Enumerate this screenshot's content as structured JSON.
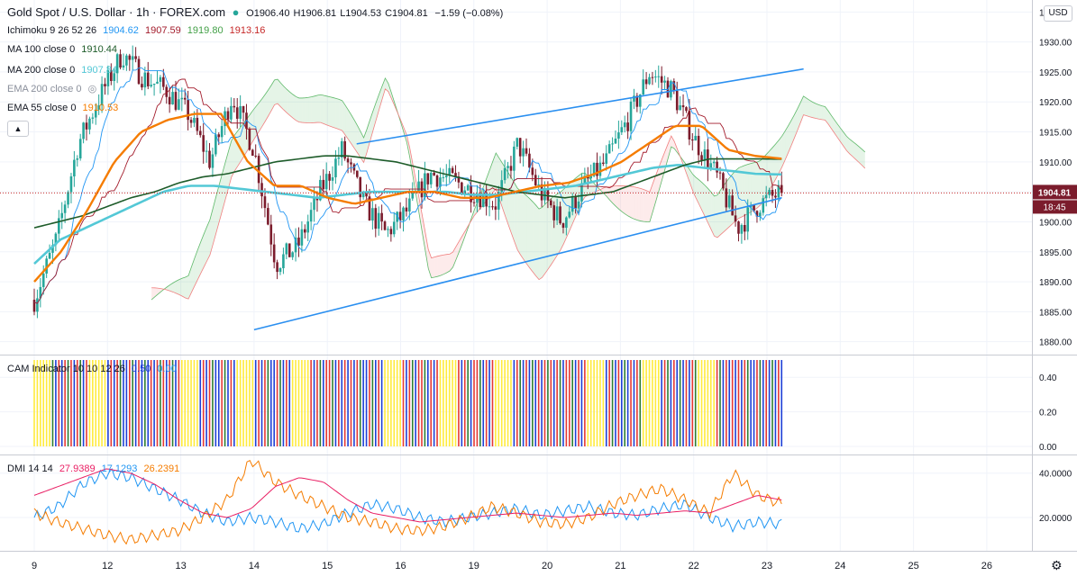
{
  "header": {
    "symbol": "Gold Spot / U.S. Dollar · 1h · FOREX.com",
    "open": "O1906.40",
    "high": "H1906.81",
    "low": "L1904.53",
    "close": "C1904.81",
    "change": "−1.59 (−0.08%)",
    "currency_button": "USD"
  },
  "legends": {
    "ichimoku": {
      "label": "Ichimoku 9 26 52 26",
      "v1": "1904.62",
      "v2": "1907.59",
      "v3": "1919.80",
      "v4": "1913.16"
    },
    "ma100": {
      "label": "MA 100 close 0",
      "value": "1910.44"
    },
    "ma200": {
      "label": "MA 200 close 0",
      "value": "1907.84"
    },
    "ema200": {
      "label": "EMA 200 close 0"
    },
    "ema55": {
      "label": "EMA 55 close 0",
      "value": "1910.53"
    },
    "cam": {
      "label": "CAM Indicator 10 10 12 26",
      "v1": "0.50",
      "v2": "0.00"
    },
    "dmi": {
      "label": "DMI 14 14",
      "v1": "27.9389",
      "v2": "17.1293",
      "v3": "26.2391"
    }
  },
  "price_label": "1904.81",
  "countdown": "18:45",
  "colors": {
    "up": "#26a69a",
    "down": "#7b1c2c",
    "ma100": "#1e5c2a",
    "ema200": "#53c8d6",
    "ema55": "#f57c00",
    "trend": "#2a8ff0",
    "kijun": "#a31c2c",
    "tenkan": "#2196f3",
    "cloud_green": "#5fb96a",
    "cloud_red": "#f08080",
    "dmi_plus": "#2196f3",
    "dmi_minus": "#f57c00",
    "adx": "#e91e63",
    "cam_colors": [
      "#ffeb3b",
      "#1e3fd6",
      "#e53935",
      "#2e7d32"
    ]
  },
  "chart_data": [
    {
      "type": "candlestick",
      "title": "Gold Spot / U.S. Dollar · 1h · FOREX.com",
      "x_ticks": [
        "9",
        "12",
        "13",
        "14",
        "15",
        "16",
        "19",
        "20",
        "21",
        "22",
        "23",
        "24",
        "25",
        "26"
      ],
      "y_ticks": [
        "1935.00",
        "1930.00",
        "1925.00",
        "1920.00",
        "1915.00",
        "1910.00",
        "1905.00",
        "1900.00",
        "1895.00",
        "1890.00",
        "1885.00",
        "1880.00"
      ],
      "ylim": [
        1878,
        1937
      ],
      "path_x_days": [
        0,
        0.3,
        0.6,
        0.9,
        1.2,
        1.5,
        1.8,
        2.1,
        2.4,
        2.7,
        3.0,
        3.3,
        3.6,
        3.9,
        4.2,
        4.5,
        4.8,
        5.1,
        5.4,
        5.7,
        6.0,
        6.3,
        6.6,
        6.9,
        7.2,
        7.5,
        7.8,
        8.1,
        8.4,
        8.7,
        9.0,
        9.3,
        9.6,
        9.9,
        10.2
      ],
      "path_close": [
        1887,
        1897,
        1913,
        1921,
        1928,
        1924,
        1922,
        1918,
        1910,
        1921,
        1912,
        1893,
        1896,
        1905,
        1912,
        1903,
        1898,
        1902,
        1908,
        1907,
        1905,
        1903,
        1913,
        1905,
        1900,
        1906,
        1910,
        1917,
        1925,
        1922,
        1914,
        1908,
        1899,
        1903,
        1905
      ],
      "ma100": [
        1899,
        1900,
        1901,
        1902.5,
        1904,
        1905,
        1906.5,
        1907.5,
        1908,
        1909,
        1910,
        1910.5,
        1911,
        1911,
        1910.5,
        1910,
        1909,
        1908,
        1907,
        1906,
        1905,
        1904.5,
        1904,
        1904.5,
        1905,
        1906.5,
        1908,
        1909.5,
        1910.5,
        1910.5,
        1910.5,
        1910.44
      ],
      "ema200": [
        1893,
        1897,
        1899,
        1901,
        1903,
        1905,
        1906,
        1906,
        1905.5,
        1905,
        1904.5,
        1904,
        1904.5,
        1905,
        1905,
        1905,
        1905,
        1904.5,
        1904.5,
        1905,
        1905.5,
        1906,
        1907,
        1908,
        1909,
        1909.5,
        1909,
        1908.5,
        1908,
        1907.9
      ],
      "ema55": [
        1890,
        1895,
        1902,
        1910,
        1915,
        1917,
        1918,
        1918,
        1910,
        1906,
        1906,
        1904,
        1903,
        1904,
        1905,
        1905,
        1904,
        1904,
        1905,
        1906,
        1906.5,
        1908,
        1910,
        1913,
        1916,
        1916,
        1912,
        1911,
        1910.53
      ],
      "trendline_upper": [
        [
          4.4,
          1913
        ],
        [
          10.5,
          1925.5
        ]
      ],
      "trendline_lower": [
        [
          3.0,
          1882
        ],
        [
          10.2,
          1904
        ]
      ]
    },
    {
      "type": "bar",
      "title": "CAM Indicator 10 10 12 26",
      "y_ticks": [
        "0.40",
        "0.20",
        "0.00"
      ],
      "ylim": [
        0,
        0.5
      ]
    },
    {
      "type": "line",
      "title": "DMI 14 14",
      "y_ticks": [
        "40.0000",
        "20.0000"
      ],
      "ylim": [
        5,
        48
      ],
      "series": [
        {
          "name": "+DI",
          "values": [
            20,
            25,
            35,
            40,
            38,
            33,
            28,
            22,
            18,
            20,
            18,
            15,
            17,
            22,
            26,
            24,
            20,
            18,
            20,
            22,
            24,
            21,
            23,
            25,
            22,
            21,
            24,
            26,
            20,
            16,
            18,
            17.1
          ]
        },
        {
          "name": "−DI",
          "values": [
            22,
            18,
            15,
            12,
            10,
            12,
            14,
            20,
            28,
            46,
            36,
            30,
            25,
            20,
            18,
            15,
            14,
            16,
            20,
            25,
            22,
            18,
            17,
            20,
            26,
            30,
            33,
            28,
            22,
            40,
            30,
            26.2
          ]
        },
        {
          "name": "ADX",
          "values": [
            30,
            34,
            38,
            42,
            40,
            35,
            28,
            22,
            20,
            24,
            34,
            38,
            36,
            28,
            22,
            20,
            18,
            19,
            20,
            21,
            22,
            21,
            20,
            21,
            22,
            21,
            22,
            23,
            22,
            26,
            30,
            27.9
          ]
        }
      ]
    }
  ]
}
